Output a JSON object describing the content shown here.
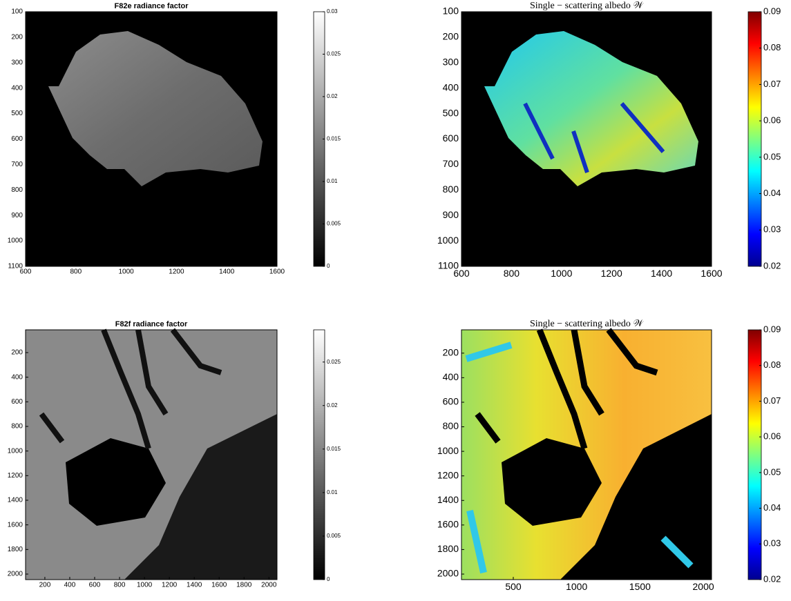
{
  "chart_data": [
    {
      "type": "image",
      "title": "F82e radiance factor",
      "colormap": "gray",
      "y_reversed": true,
      "xlim": [
        600,
        1600
      ],
      "xticks": [
        600,
        800,
        1000,
        1200,
        1400,
        1600
      ],
      "ylim": [
        100,
        1100
      ],
      "yticks": [
        100,
        200,
        300,
        400,
        500,
        600,
        700,
        800,
        900,
        1000,
        1100
      ],
      "clim": [
        0,
        0.03
      ],
      "cticks": [
        0,
        0.005,
        0.01,
        0.015,
        0.02,
        0.025,
        0.03
      ]
    },
    {
      "type": "image",
      "title": "Single − scattering albedo 𝒲",
      "colormap": "jet",
      "y_reversed": true,
      "xlim": [
        600,
        1600
      ],
      "xticks": [
        600,
        800,
        1000,
        1200,
        1400,
        1600
      ],
      "ylim": [
        100,
        1100
      ],
      "yticks": [
        100,
        200,
        300,
        400,
        500,
        600,
        700,
        800,
        900,
        1000,
        1100
      ],
      "clim": [
        0.02,
        0.09
      ],
      "cticks": [
        0.02,
        0.03,
        0.04,
        0.05,
        0.06,
        0.07,
        0.08,
        0.09
      ]
    },
    {
      "type": "image",
      "title": "F82f radiance factor",
      "colormap": "gray",
      "y_reversed": true,
      "xlim": [
        45,
        2065
      ],
      "xticks": [
        200,
        400,
        600,
        800,
        1000,
        1200,
        1400,
        1600,
        1800,
        2000
      ],
      "ylim": [
        15,
        2045
      ],
      "yticks": [
        200,
        400,
        600,
        800,
        1000,
        1200,
        1400,
        1600,
        1800,
        2000
      ],
      "clim": [
        0,
        0.0287
      ],
      "cticks": [
        0,
        0.005,
        0.01,
        0.015,
        0.02,
        0.025
      ]
    },
    {
      "type": "image",
      "title": "Single − scattering albedo 𝒲",
      "colormap": "jet",
      "y_reversed": true,
      "xlim": [
        91,
        2065
      ],
      "xticks": [
        500,
        1000,
        1500,
        2000
      ],
      "ylim": [
        10,
        2045
      ],
      "yticks": [
        200,
        400,
        600,
        800,
        1000,
        1200,
        1400,
        1600,
        1800,
        2000
      ],
      "clim": [
        0.02,
        0.09
      ],
      "cticks": [
        0.02,
        0.03,
        0.04,
        0.05,
        0.06,
        0.07,
        0.08,
        0.09
      ]
    }
  ]
}
